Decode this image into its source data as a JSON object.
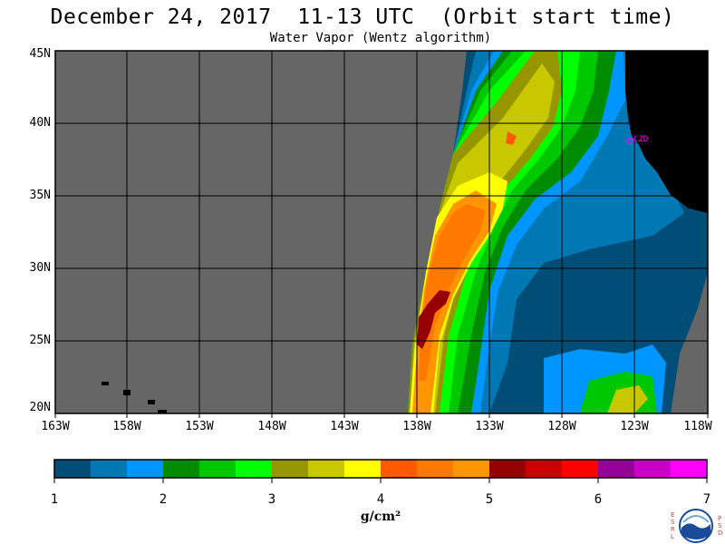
{
  "header": {
    "title": "December 24, 2017  11-13 UTC  (Orbit start time)",
    "subtitle": "Water Vapor (Wentz algorithm)"
  },
  "map": {
    "lat_labels": [
      "45N",
      "40N",
      "35N",
      "30N",
      "25N",
      "20N"
    ],
    "lon_labels": [
      "163W",
      "158W",
      "153W",
      "148W",
      "143W",
      "138W",
      "133W",
      "128W",
      "123W",
      "118W"
    ],
    "station_label": "CZD",
    "colors": {
      "no_data": "#666666",
      "land": "#000000",
      "grid": "#000000",
      "station": "#ff00ff"
    }
  },
  "colorbar": {
    "tick_labels": [
      "1",
      "2",
      "3",
      "4",
      "5",
      "6",
      "7"
    ],
    "units": "g/cm²",
    "min": 1,
    "max": 7,
    "colors": [
      "#004e78",
      "#0078b4",
      "#0096ff",
      "#008c00",
      "#00c800",
      "#00ff00",
      "#969600",
      "#c8c800",
      "#ffff00",
      "#ff5a00",
      "#ff7800",
      "#ff9600",
      "#960000",
      "#c80000",
      "#ff0000",
      "#960096",
      "#c800c8",
      "#ff00ff"
    ]
  },
  "logo": {
    "left_letters": "E S R L",
    "right_letters": "P S D",
    "name": "noaa-logo"
  }
}
